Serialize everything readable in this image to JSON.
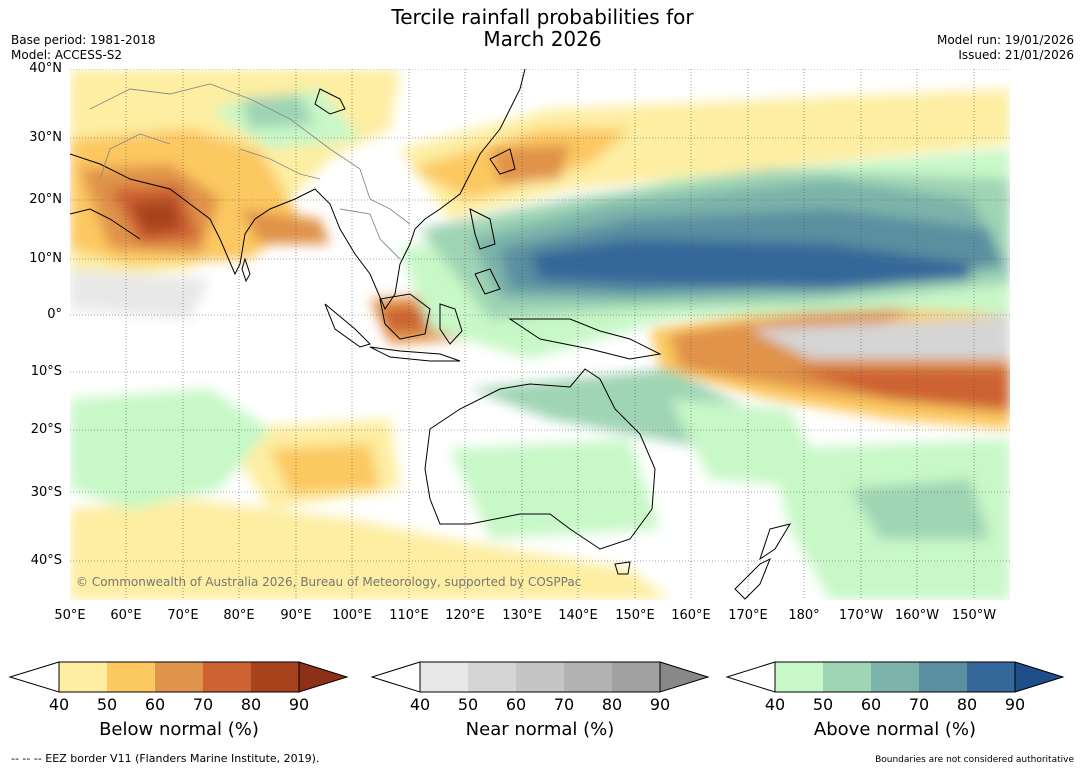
{
  "title_line1": "Tercile rainfall probabilities for",
  "title_line2": "March 2026",
  "meta_left": {
    "base_period": "Base period: 1981-2018",
    "model": "Model: ACCESS-S2"
  },
  "meta_right": {
    "model_run": "Model run: 19/01/2026",
    "issued": "Issued: 21/01/2026"
  },
  "map": {
    "lat_labels": [
      "40°N",
      "30°N",
      "20°N",
      "10°N",
      "0°",
      "10°S",
      "20°S",
      "30°S",
      "40°S"
    ],
    "lon_labels": [
      "50°E",
      "60°E",
      "70°E",
      "80°E",
      "90°E",
      "100°E",
      "110°E",
      "120°E",
      "130°E",
      "140°E",
      "150°E",
      "160°E",
      "170°E",
      "180°",
      "170°W",
      "160°W",
      "150°W"
    ],
    "copyright": "© Commonwealth of Australia 2026, Bureau of Meteorology, supported by COSPPac"
  },
  "colorbars": [
    {
      "title": "Below normal (%)",
      "ticks": [
        "40",
        "50",
        "60",
        "70",
        "80",
        "90"
      ],
      "colors": [
        "#fdeea2",
        "#fcc860",
        "#e0934a",
        "#cd6233",
        "#a9431d"
      ],
      "extend_color": "#8e2f17"
    },
    {
      "title": "Near normal (%)",
      "ticks": [
        "40",
        "50",
        "60",
        "70",
        "80",
        "90"
      ],
      "colors": [
        "#e8e8e8",
        "#d5d5d5",
        "#c5c5c5",
        "#b3b3b3",
        "#a1a1a1"
      ],
      "extend_color": "#888888"
    },
    {
      "title": "Above normal (%)",
      "ticks": [
        "40",
        "50",
        "60",
        "70",
        "80",
        "90"
      ],
      "colors": [
        "#c8f8c8",
        "#9fd4b4",
        "#7cb3aa",
        "#5a8fa0",
        "#35679a"
      ],
      "extend_color": "#1f4f8a"
    }
  ],
  "footer_left": "--  --  -- EEZ border V11 (Flanders Marine Institute, 2019).",
  "footer_right": "Boundaries are not considered authoritative"
}
